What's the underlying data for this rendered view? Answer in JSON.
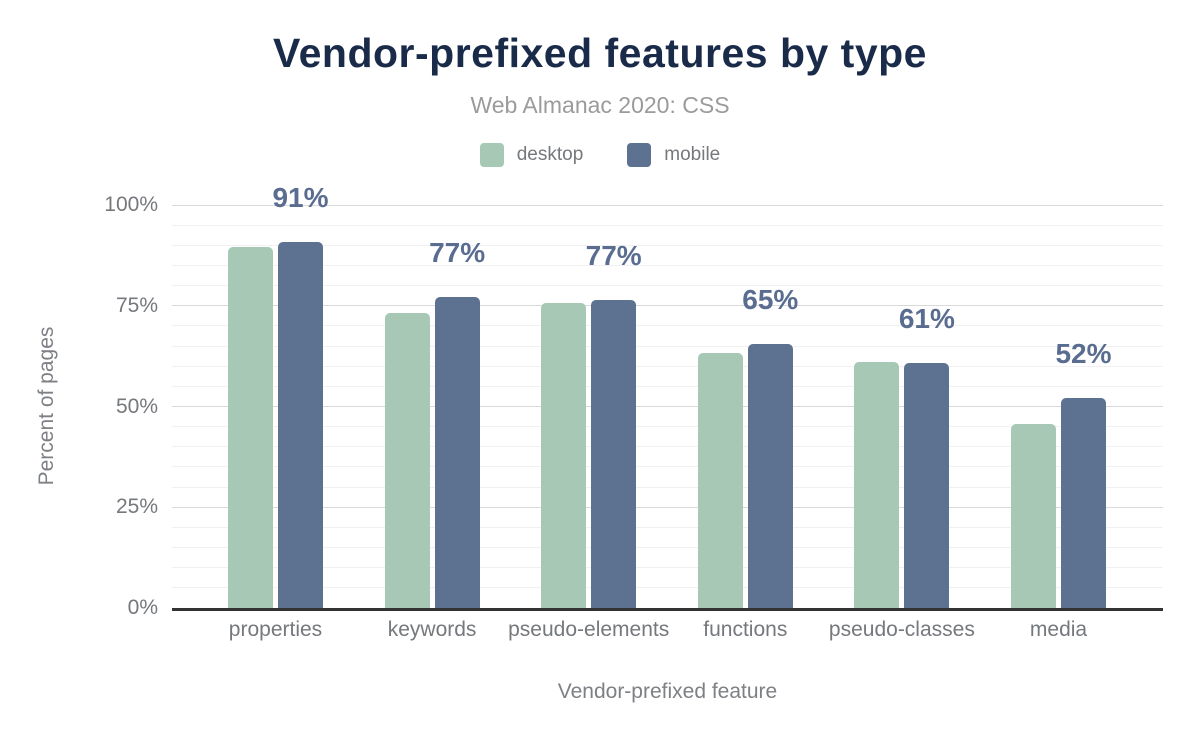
{
  "chart_data": {
    "type": "bar",
    "title": "Vendor-prefixed features by type",
    "subtitle": "Web Almanac 2020: CSS",
    "xlabel": "Vendor-prefixed feature",
    "ylabel": "Percent of pages",
    "categories": [
      "properties",
      "keywords",
      "pseudo-elements",
      "functions",
      "pseudo-classes",
      "media"
    ],
    "series": [
      {
        "name": "desktop",
        "color": "#a6c8b5",
        "values": [
          89.7,
          73.2,
          75.6,
          63.3,
          61.0,
          45.7
        ]
      },
      {
        "name": "mobile",
        "color": "#5d7190",
        "values": [
          90.9,
          77.2,
          76.5,
          65.4,
          60.8,
          52.2
        ]
      }
    ],
    "bar_labels": {
      "attached_to_series": "mobile",
      "texts": [
        "91%",
        "77%",
        "77%",
        "65%",
        "61%",
        "52%"
      ]
    },
    "y_axis": {
      "min": 0,
      "max": 100,
      "tick_labels": [
        "0%",
        "25%",
        "50%",
        "75%",
        "100%"
      ],
      "tick_values": [
        0,
        25,
        50,
        75,
        100
      ],
      "minor_step": 5,
      "grid": true
    },
    "legend": {
      "position": "top"
    },
    "theme": {
      "background": "#ffffff",
      "title_color": "#1a2b4a",
      "subtitle_color": "#9b9b9b",
      "axis_text_color": "#75787c",
      "axis_title_color": "#7d8084",
      "bar_label_color": "#5a6d91",
      "grid_major": "#d9d9d9",
      "grid_minor": "#f1f1f1",
      "baseline_color": "#333333"
    }
  }
}
